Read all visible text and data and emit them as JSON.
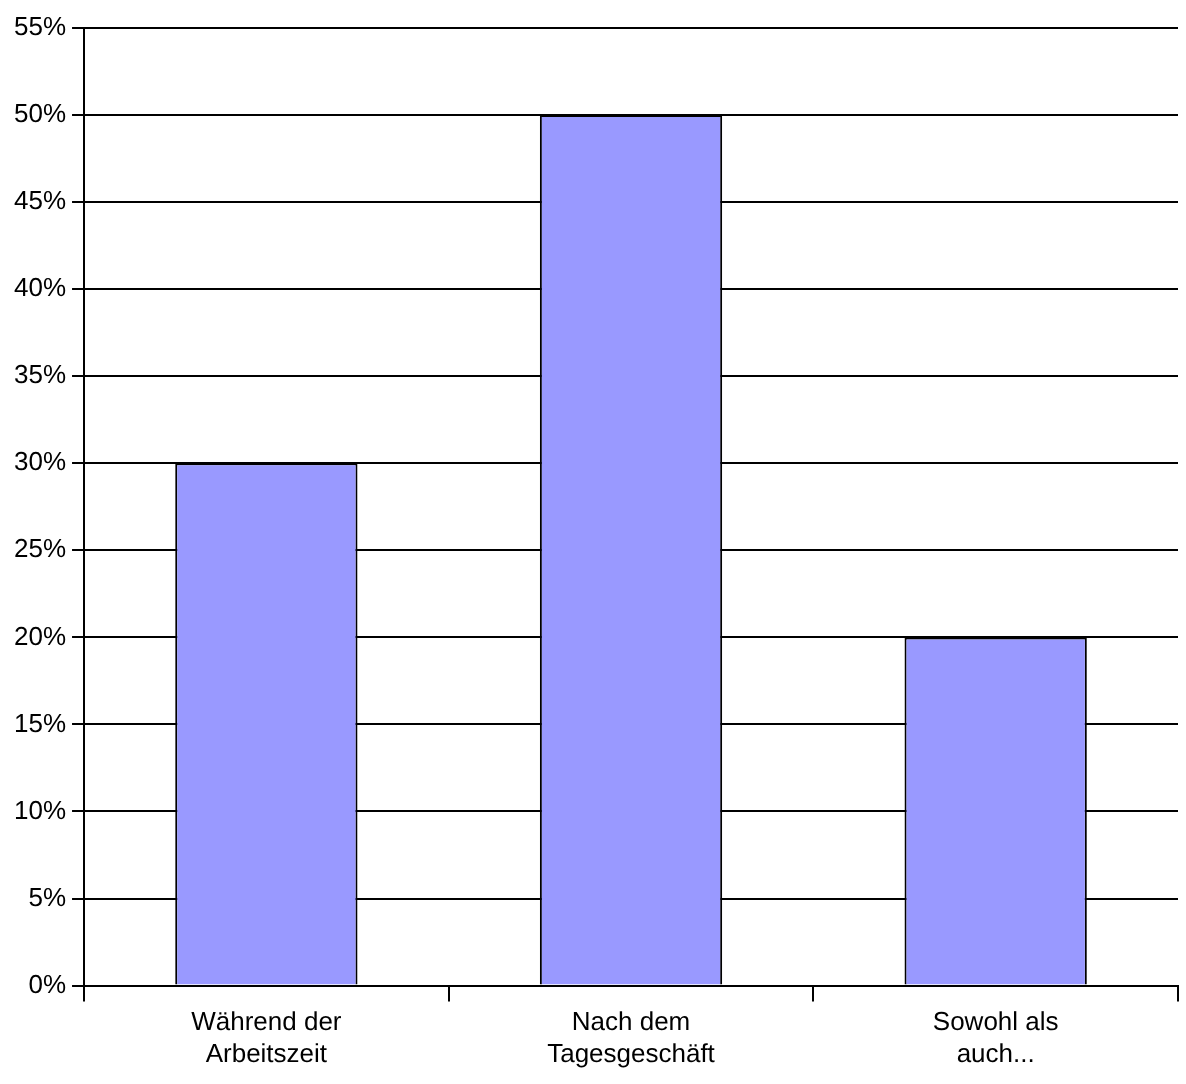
{
  "chart_data": {
    "type": "bar",
    "categories": [
      "Während der Arbeitszeit",
      "Nach dem Tagesgeschäft",
      "Sowohl als auch..."
    ],
    "values": [
      30,
      50,
      20
    ],
    "color": "#9999ff",
    "ylim": [
      0,
      55
    ],
    "yticks": [
      {
        "value": 0,
        "label": "0%"
      },
      {
        "value": 5,
        "label": "5%"
      },
      {
        "value": 10,
        "label": "10%"
      },
      {
        "value": 15,
        "label": "15%"
      },
      {
        "value": 20,
        "label": "20%"
      },
      {
        "value": 25,
        "label": "25%"
      },
      {
        "value": 30,
        "label": "30%"
      },
      {
        "value": 35,
        "label": "35%"
      },
      {
        "value": 40,
        "label": "40%"
      },
      {
        "value": 45,
        "label": "45%"
      },
      {
        "value": 50,
        "label": "50%"
      },
      {
        "value": 55,
        "label": "55%"
      }
    ],
    "grid": "y",
    "legend": false
  }
}
